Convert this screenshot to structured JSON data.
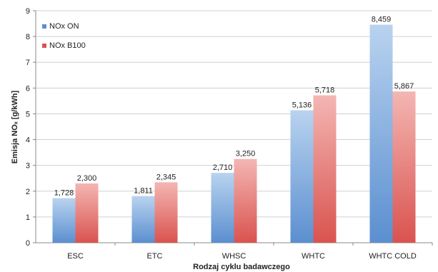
{
  "chart_data": {
    "type": "bar",
    "xlabel": "Rodzaj cyklu badawczego",
    "ylabel": "Emisja NOₓ [g/kWh]",
    "ylim": [
      0,
      9
    ],
    "yticks": [
      "0",
      "1",
      "2",
      "3",
      "4",
      "5",
      "6",
      "7",
      "8",
      "9"
    ],
    "grid": true,
    "legend_position": "top-left",
    "categories": [
      "ESC",
      "ETC",
      "WHSC",
      "WHTC",
      "WHTC COLD"
    ],
    "series": [
      {
        "name": "NOx ON",
        "values": [
          1.728,
          1.811,
          2.71,
          5.136,
          8.459
        ],
        "labels": [
          "1,728",
          "1,811",
          "2,710",
          "5,136",
          "8,459"
        ],
        "color_top": "#b9d3ef",
        "color_bottom": "#5b8fd0"
      },
      {
        "name": "NOx B100",
        "values": [
          2.3,
          2.345,
          3.25,
          5.718,
          5.867
        ],
        "labels": [
          "2,300",
          "2,345",
          "3,250",
          "5,718",
          "5,867"
        ],
        "color_top": "#f4b6b3",
        "color_bottom": "#d9534f"
      }
    ]
  }
}
